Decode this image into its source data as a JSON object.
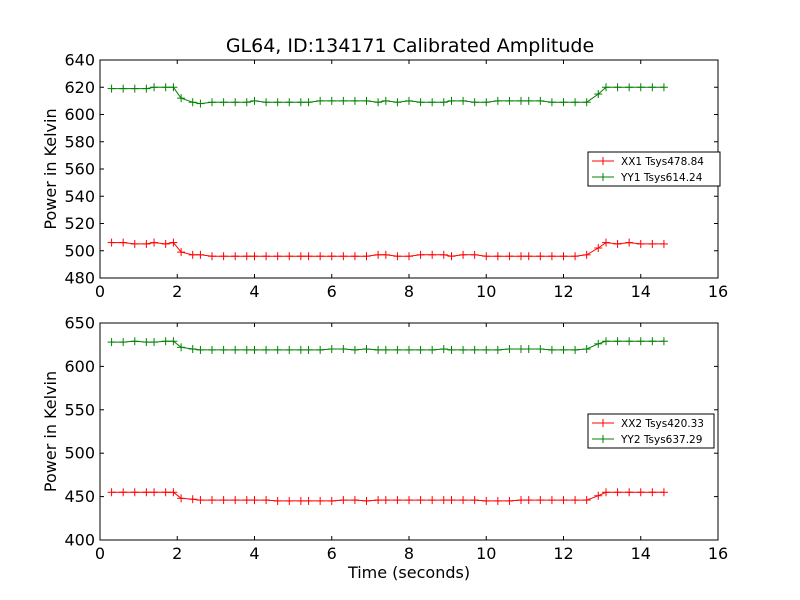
{
  "figure": {
    "title": "GL64, ID:134171 Calibrated Amplitude"
  },
  "colors": {
    "xx": "#ff0000",
    "yy": "#008000",
    "axes": "#000000",
    "background": "#ffffff"
  },
  "chart_data": [
    {
      "type": "line",
      "title": "GL64, ID:134171 Calibrated Amplitude",
      "xlabel": "",
      "ylabel": "Power in Kelvin",
      "xlim": [
        0,
        16
      ],
      "ylim": [
        480,
        640
      ],
      "xticks": [
        0,
        2,
        4,
        6,
        8,
        10,
        12,
        14,
        16
      ],
      "yticks": [
        480,
        500,
        520,
        540,
        560,
        580,
        600,
        620,
        640
      ],
      "grid": false,
      "legend": "right",
      "series": [
        {
          "name": "XX1 Tsys478.84",
          "color": "#ff0000",
          "x": [
            0.3,
            0.6,
            0.9,
            1.2,
            1.4,
            1.7,
            1.9,
            2.1,
            2.4,
            2.6,
            2.9,
            3.2,
            3.5,
            3.8,
            4.0,
            4.3,
            4.6,
            4.9,
            5.2,
            5.4,
            5.7,
            6.0,
            6.3,
            6.6,
            6.9,
            7.2,
            7.4,
            7.7,
            8.0,
            8.3,
            8.6,
            8.9,
            9.1,
            9.4,
            9.7,
            10.0,
            10.3,
            10.6,
            10.9,
            11.1,
            11.4,
            11.7,
            12.0,
            12.3,
            12.6,
            12.9,
            13.1,
            13.4,
            13.7,
            14.0,
            14.3,
            14.6
          ],
          "y": [
            506,
            506,
            505,
            505,
            506,
            505,
            506,
            499,
            497,
            497,
            496,
            496,
            496,
            496,
            496,
            496,
            496,
            496,
            496,
            496,
            496,
            496,
            496,
            496,
            496,
            497,
            497,
            496,
            496,
            497,
            497,
            497,
            496,
            497,
            497,
            496,
            496,
            496,
            496,
            496,
            496,
            496,
            496,
            496,
            497,
            502,
            506,
            505,
            506,
            505,
            505,
            505
          ]
        },
        {
          "name": "YY1 Tsys614.24",
          "color": "#008000",
          "x": [
            0.3,
            0.6,
            0.9,
            1.2,
            1.4,
            1.7,
            1.9,
            2.1,
            2.4,
            2.6,
            2.9,
            3.2,
            3.5,
            3.8,
            4.0,
            4.3,
            4.6,
            4.9,
            5.2,
            5.4,
            5.7,
            6.0,
            6.3,
            6.6,
            6.9,
            7.2,
            7.4,
            7.7,
            8.0,
            8.3,
            8.6,
            8.9,
            9.1,
            9.4,
            9.7,
            10.0,
            10.3,
            10.6,
            10.9,
            11.1,
            11.4,
            11.7,
            12.0,
            12.3,
            12.6,
            12.9,
            13.1,
            13.4,
            13.7,
            14.0,
            14.3,
            14.6
          ],
          "y": [
            619,
            619,
            619,
            619,
            620,
            620,
            620,
            612,
            609,
            608,
            609,
            609,
            609,
            609,
            610,
            609,
            609,
            609,
            609,
            609,
            610,
            610,
            610,
            610,
            610,
            609,
            610,
            609,
            610,
            609,
            609,
            609,
            610,
            610,
            609,
            609,
            610,
            610,
            610,
            610,
            610,
            609,
            609,
            609,
            609,
            615,
            620,
            620,
            620,
            620,
            620,
            620
          ]
        }
      ]
    },
    {
      "type": "line",
      "title": "",
      "xlabel": "Time (seconds)",
      "ylabel": "Power in Kelvin",
      "xlim": [
        0,
        16
      ],
      "ylim": [
        400,
        650
      ],
      "xticks": [
        0,
        2,
        4,
        6,
        8,
        10,
        12,
        14,
        16
      ],
      "yticks": [
        400,
        450,
        500,
        550,
        600,
        650
      ],
      "grid": false,
      "legend": "right",
      "series": [
        {
          "name": "XX2 Tsys420.33",
          "color": "#ff0000",
          "x": [
            0.3,
            0.6,
            0.9,
            1.2,
            1.4,
            1.7,
            1.9,
            2.1,
            2.4,
            2.6,
            2.9,
            3.2,
            3.5,
            3.8,
            4.0,
            4.3,
            4.6,
            4.9,
            5.2,
            5.4,
            5.7,
            6.0,
            6.3,
            6.6,
            6.9,
            7.2,
            7.4,
            7.7,
            8.0,
            8.3,
            8.6,
            8.9,
            9.1,
            9.4,
            9.7,
            10.0,
            10.3,
            10.6,
            10.9,
            11.1,
            11.4,
            11.7,
            12.0,
            12.3,
            12.6,
            12.9,
            13.1,
            13.4,
            13.7,
            14.0,
            14.3,
            14.6
          ],
          "y": [
            455,
            455,
            455,
            455,
            455,
            455,
            455,
            448,
            447,
            446,
            446,
            446,
            446,
            446,
            446,
            446,
            445,
            445,
            445,
            445,
            445,
            445,
            446,
            446,
            445,
            446,
            446,
            446,
            446,
            446,
            446,
            446,
            446,
            446,
            446,
            445,
            445,
            445,
            446,
            446,
            446,
            446,
            446,
            446,
            446,
            451,
            455,
            455,
            455,
            455,
            455,
            455
          ]
        },
        {
          "name": "YY2 Tsys637.29",
          "color": "#008000",
          "x": [
            0.3,
            0.6,
            0.9,
            1.2,
            1.4,
            1.7,
            1.9,
            2.1,
            2.4,
            2.6,
            2.9,
            3.2,
            3.5,
            3.8,
            4.0,
            4.3,
            4.6,
            4.9,
            5.2,
            5.4,
            5.7,
            6.0,
            6.3,
            6.6,
            6.9,
            7.2,
            7.4,
            7.7,
            8.0,
            8.3,
            8.6,
            8.9,
            9.1,
            9.4,
            9.7,
            10.0,
            10.3,
            10.6,
            10.9,
            11.1,
            11.4,
            11.7,
            12.0,
            12.3,
            12.6,
            12.9,
            13.1,
            13.4,
            13.7,
            14.0,
            14.3,
            14.6
          ],
          "y": [
            628,
            628,
            629,
            628,
            628,
            629,
            629,
            622,
            620,
            619,
            619,
            619,
            619,
            619,
            619,
            619,
            619,
            619,
            619,
            619,
            619,
            620,
            620,
            619,
            620,
            619,
            619,
            619,
            619,
            619,
            619,
            620,
            619,
            619,
            619,
            619,
            619,
            620,
            620,
            620,
            620,
            619,
            619,
            619,
            620,
            626,
            629,
            629,
            629,
            629,
            629,
            629
          ]
        }
      ]
    }
  ]
}
